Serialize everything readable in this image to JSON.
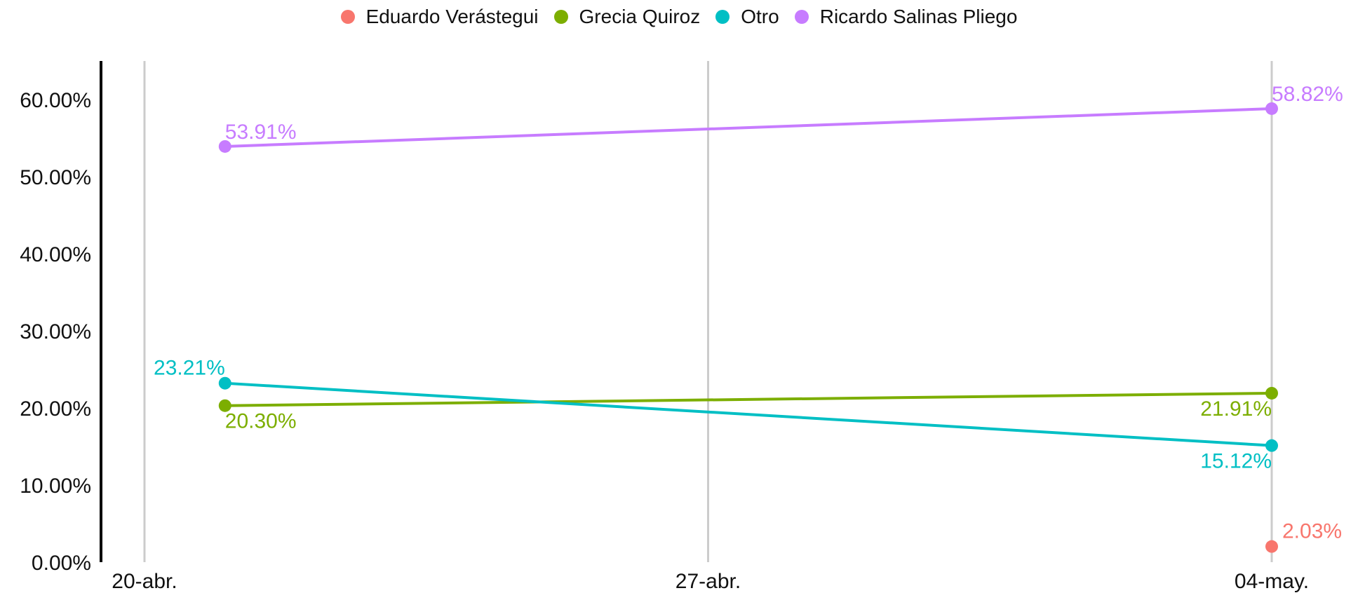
{
  "chart_data": {
    "type": "line",
    "title": "",
    "xlabel": "",
    "ylabel": "",
    "x_ticks": [
      "20-abr.",
      "27-abr.",
      "04-may."
    ],
    "ylim": [
      0,
      0.65
    ],
    "y_ticks": [
      "0.00%",
      "10.00%",
      "20.00%",
      "30.00%",
      "40.00%",
      "50.00%",
      "60.00%"
    ],
    "legend_position": "top-center",
    "grid": "vertical",
    "series": [
      {
        "name": "Eduardo Verástegui",
        "color": "#F8766D",
        "points": [
          {
            "x": "2024-05-04",
            "y": 0.0203,
            "label": "2.03%"
          }
        ]
      },
      {
        "name": "Grecia Quiroz",
        "color": "#7CAE00",
        "points": [
          {
            "x": "2024-04-21",
            "y": 0.203,
            "label": "20.30%"
          },
          {
            "x": "2024-05-04",
            "y": 0.2191,
            "label": "21.91%"
          }
        ]
      },
      {
        "name": "Otro",
        "color": "#00BFC4",
        "points": [
          {
            "x": "2024-04-21",
            "y": 0.2321,
            "label": "23.21%"
          },
          {
            "x": "2024-05-04",
            "y": 0.1512,
            "label": "15.12%"
          }
        ]
      },
      {
        "name": "Ricardo Salinas Pliego",
        "color": "#C77CFF",
        "points": [
          {
            "x": "2024-04-21",
            "y": 0.5391,
            "label": "53.91%"
          },
          {
            "x": "2024-05-04",
            "y": 0.5882,
            "label": "58.82%"
          }
        ]
      }
    ]
  }
}
